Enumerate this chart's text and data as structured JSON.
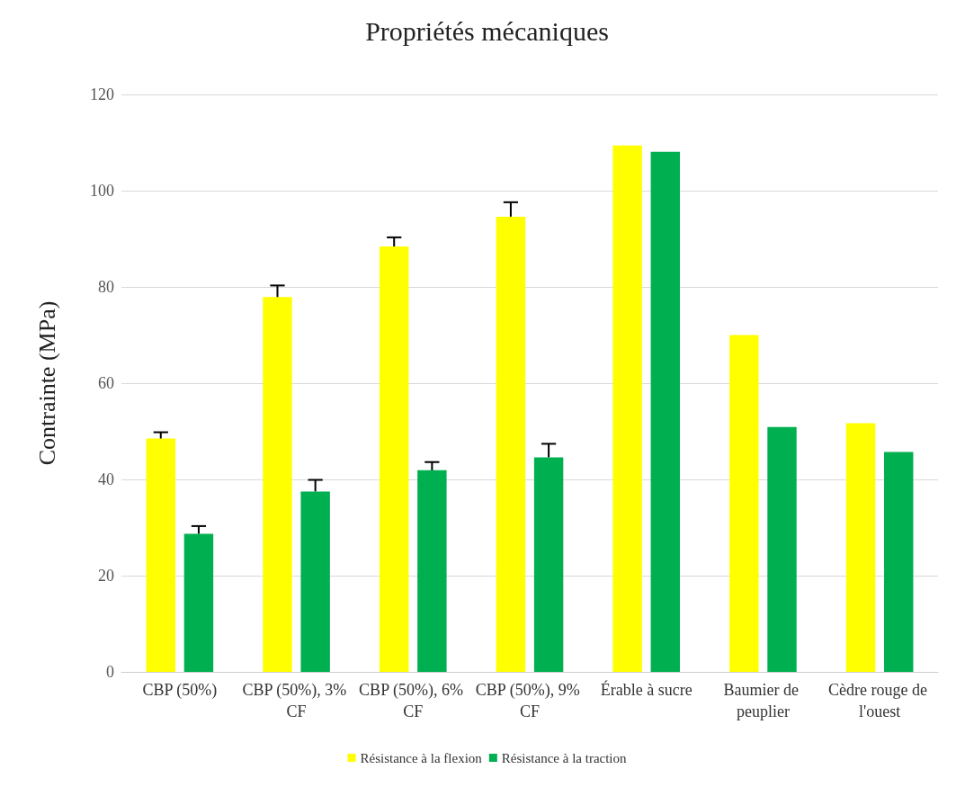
{
  "chart_data": {
    "type": "bar",
    "title": "Propriétés mécaniques",
    "ylabel": "Contrainte (MPa)",
    "categories": [
      "CBP (50%)",
      "CBP (50%), 3% CF",
      "CBP (50%), 6% CF",
      "CBP (50%), 9% CF",
      "Érable à sucre",
      "Baumier de peuplier",
      "Cèdre rouge de l'ouest"
    ],
    "series": [
      {
        "name": "Résistance à la flexion",
        "color": "#ffff00",
        "values": [
          48.5,
          77.9,
          88.4,
          94.6,
          109.4,
          70.0,
          51.7
        ],
        "errors": [
          [
            48.5,
            49.8
          ],
          [
            77.9,
            80.3
          ],
          [
            88.4,
            90.3
          ],
          [
            94.6,
            97.6
          ],
          null,
          null,
          null
        ]
      },
      {
        "name": "Résistance à la traction",
        "color": "#00b050",
        "values": [
          28.7,
          37.5,
          41.9,
          44.6,
          108.1,
          50.9,
          45.7
        ],
        "errors": [
          [
            28.7,
            30.3
          ],
          [
            37.5,
            39.9
          ],
          [
            41.9,
            43.6
          ],
          [
            44.6,
            47.4
          ],
          null,
          null,
          null
        ]
      }
    ],
    "ylim": [
      0,
      120
    ],
    "yticks": [
      0,
      20,
      40,
      60,
      80,
      100,
      120
    ],
    "grid": "y",
    "legend": "bottom"
  }
}
